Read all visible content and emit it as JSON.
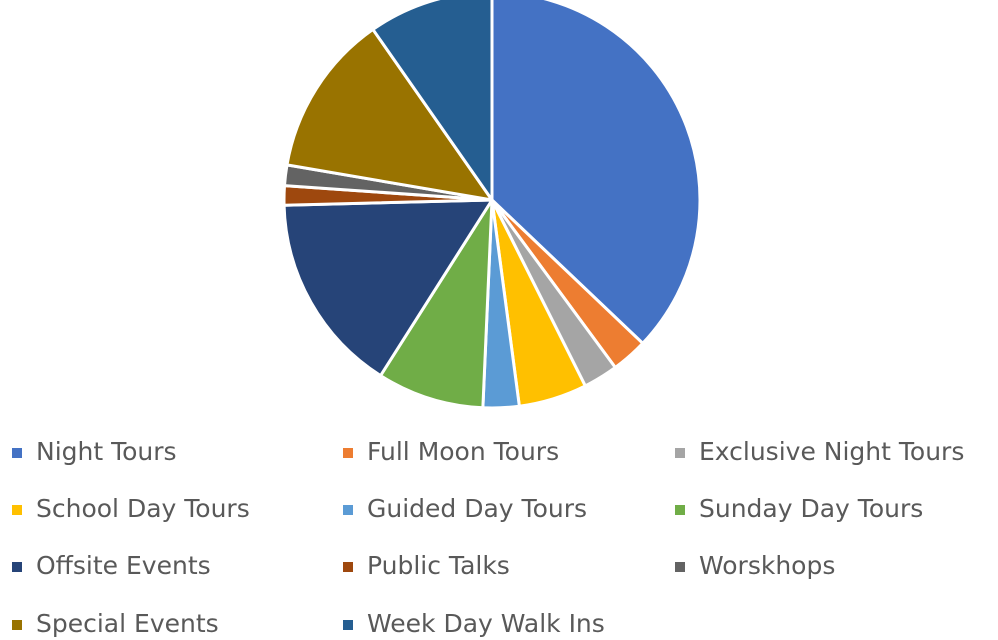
{
  "chart_data": {
    "type": "pie",
    "categories": [
      "Night Tours",
      "Full Moon Tours",
      "Exclusive Night Tours",
      "School Day Tours",
      "Guided Day Tours",
      "Sunday Day Tours",
      "Offsite Events",
      "Public Talks",
      "Worskhops",
      "Special Events",
      "Week Day Walk Ins"
    ],
    "values": [
      37.1,
      2.8,
      2.7,
      5.3,
      2.8,
      8.3,
      15.6,
      1.5,
      1.6,
      12.6,
      9.7
    ],
    "colors": [
      "#4472c4",
      "#ed7d31",
      "#a5a5a5",
      "#ffc000",
      "#5b9bd5",
      "#70ad47",
      "#264478",
      "#9e480e",
      "#636363",
      "#997300",
      "#255e91"
    ],
    "legend": "bottom"
  }
}
